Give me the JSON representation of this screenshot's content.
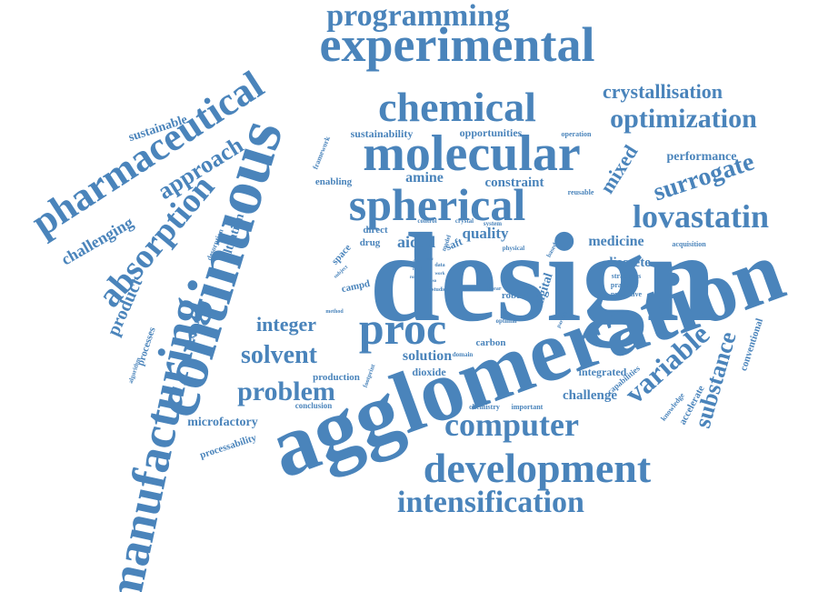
{
  "color": "#4a84bb",
  "words": [
    {
      "text": "design"
    },
    {
      "text": "agglomeration"
    },
    {
      "text": "continuous"
    },
    {
      "text": "experimental"
    },
    {
      "text": "manufacturing"
    },
    {
      "text": "molecular"
    },
    {
      "text": "spherical"
    },
    {
      "text": "chemical"
    },
    {
      "text": "development"
    },
    {
      "text": "pharmaceutical"
    },
    {
      "text": "proc"
    },
    {
      "text": "computer"
    },
    {
      "text": "absorption"
    },
    {
      "text": "intensification"
    },
    {
      "text": "programming"
    },
    {
      "text": "lovastatin"
    },
    {
      "text": "optimization"
    },
    {
      "text": "surrogate"
    },
    {
      "text": "variable"
    },
    {
      "text": "problem"
    },
    {
      "text": "approach"
    },
    {
      "text": "solvent"
    },
    {
      "text": "substance"
    },
    {
      "text": "crystallisation"
    },
    {
      "text": "integer"
    },
    {
      "text": "product"
    },
    {
      "text": "mixed"
    },
    {
      "text": "challenging"
    },
    {
      "text": "aided"
    },
    {
      "text": "quality"
    },
    {
      "text": "medicine"
    },
    {
      "text": "constraint"
    },
    {
      "text": "amine"
    },
    {
      "text": "performance"
    },
    {
      "text": "discrete"
    },
    {
      "text": "microfactory"
    },
    {
      "text": "challenge"
    },
    {
      "text": "solution"
    },
    {
      "text": "filtration"
    },
    {
      "text": "digital"
    },
    {
      "text": "sustainable"
    },
    {
      "text": "sustainability"
    },
    {
      "text": "opportunities"
    },
    {
      "text": "enabling"
    },
    {
      "text": "integrated"
    },
    {
      "text": "processability"
    },
    {
      "text": "accelerate"
    },
    {
      "text": "processes"
    },
    {
      "text": "exploration"
    },
    {
      "text": "conventional"
    },
    {
      "text": "dioxide"
    },
    {
      "text": "carbon"
    },
    {
      "text": "production"
    },
    {
      "text": "space"
    },
    {
      "text": "drug"
    },
    {
      "text": "direct"
    },
    {
      "text": "saft"
    },
    {
      "text": "campd"
    },
    {
      "text": "robust"
    },
    {
      "text": "strategies"
    },
    {
      "text": "practical"
    },
    {
      "text": "predictive"
    },
    {
      "text": "capabilities"
    },
    {
      "text": "knowledge"
    },
    {
      "text": "conclusion"
    },
    {
      "text": "framework"
    },
    {
      "text": "operation"
    },
    {
      "text": "reusable"
    },
    {
      "text": "acquisition"
    },
    {
      "text": "desorption"
    },
    {
      "text": "algorithm"
    },
    {
      "text": "chemistry"
    },
    {
      "text": "important"
    },
    {
      "text": "footprint"
    },
    {
      "text": "domain"
    },
    {
      "text": "optimal"
    },
    {
      "text": "physical"
    },
    {
      "text": "based"
    },
    {
      "text": "system"
    },
    {
      "text": "control"
    },
    {
      "text": "crystal"
    },
    {
      "text": "model"
    },
    {
      "text": "particle"
    },
    {
      "text": "linear"
    },
    {
      "text": "method"
    },
    {
      "text": "subject"
    },
    {
      "text": "studies"
    },
    {
      "text": "data"
    },
    {
      "text": "work"
    },
    {
      "text": "case"
    },
    {
      "text": "need"
    },
    {
      "text": "also"
    },
    {
      "text": "solv"
    },
    {
      "text": "role"
    }
  ]
}
